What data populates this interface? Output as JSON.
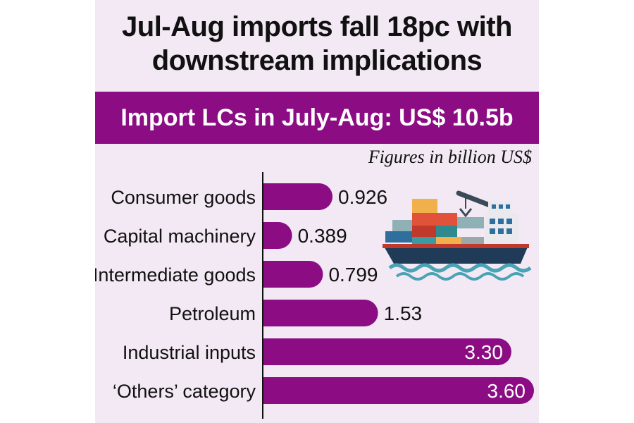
{
  "header": {
    "title_line1": "Jul-Aug imports fall 18pc with",
    "title_line2": "downstream implications",
    "banner": "Import LCs in July-Aug:  US$ 10.5b",
    "unit_note": "Figures in billion US$"
  },
  "colors": {
    "bar": "#8c0c84",
    "background": "#f3e9f4",
    "axis": "#111111"
  },
  "illustration": "cargo-ship-icon",
  "chart_data": {
    "type": "bar",
    "orientation": "horizontal",
    "categories": [
      "Consumer goods",
      "Capital machinery",
      "Intermediate goods",
      "Petroleum",
      "Industrial inputs",
      "‘Others’ category"
    ],
    "values": [
      0.926,
      0.389,
      0.799,
      1.53,
      3.3,
      3.6
    ],
    "value_labels": [
      "0.926",
      "0.389",
      "0.799",
      "1.53",
      "3.30",
      "3.60"
    ],
    "title": "Import LCs in July-Aug:  US$ 10.5b",
    "xlabel": "",
    "ylabel": "",
    "xlim": [
      0,
      3.6
    ],
    "grid": false
  }
}
